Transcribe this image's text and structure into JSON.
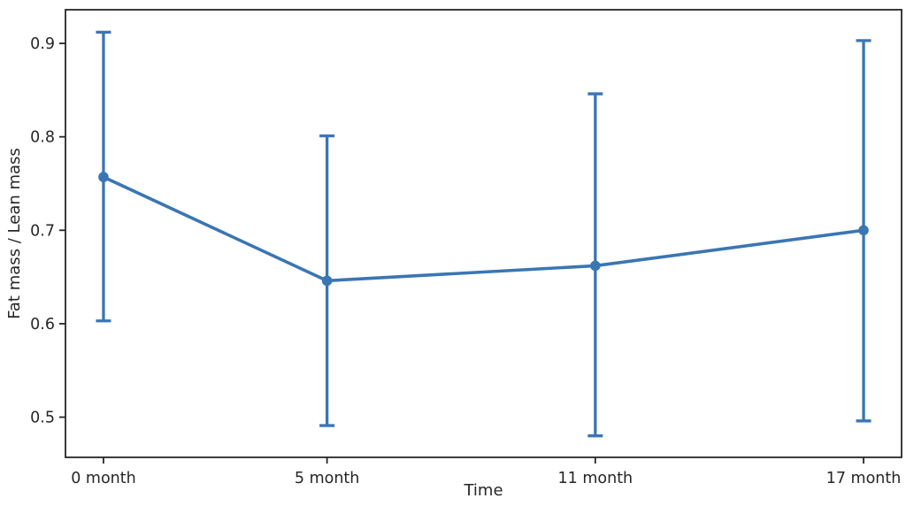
{
  "figure": {
    "background": "#ffffff"
  },
  "chart_data": {
    "type": "line",
    "title": "",
    "xlabel": "Time",
    "ylabel": "Fat mass / Lean mass",
    "x": [
      0,
      5,
      11,
      17
    ],
    "x_tick_labels": [
      "0 month",
      "5 month",
      "11 month",
      "17 month"
    ],
    "series": [
      {
        "name": "Fat mass / Lean mass",
        "values": [
          0.757,
          0.646,
          0.662,
          0.7
        ],
        "err_low": [
          0.603,
          0.491,
          0.48,
          0.496
        ],
        "err_high": [
          0.912,
          0.801,
          0.846,
          0.903
        ],
        "color": "#3a76b3",
        "marker": "circle"
      }
    ],
    "xlim": [
      -0.85,
      17.85
    ],
    "ylim": [
      0.457,
      0.936
    ],
    "yticks": [
      0.5,
      0.6,
      0.7,
      0.8,
      0.9
    ],
    "ytick_labels": [
      "0.5",
      "0.6",
      "0.7",
      "0.8",
      "0.9"
    ],
    "grid": false,
    "legend_position": "none",
    "axis_color": "#262626"
  }
}
